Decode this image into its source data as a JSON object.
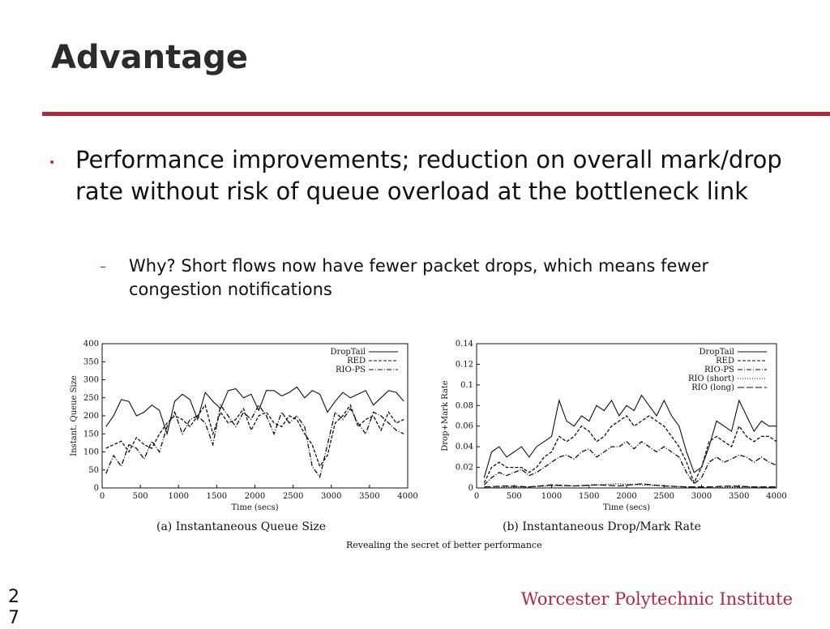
{
  "slide": {
    "title": "Advantage",
    "bullet": "Performance improvements; reduction on overall mark/drop rate without risk of queue overload at the bottleneck link",
    "sub_bullet": "Why?  Short flows now have fewer packet drops, which means fewer congestion notifications",
    "page_number": "27",
    "footer": "Worcester Polytechnic Institute",
    "accent_color": "#b2283a"
  },
  "figure": {
    "caption": "Revealing the secret of better performance"
  },
  "chart_data": [
    {
      "type": "line",
      "subcaption": "(a) Instantaneous Queue Size",
      "xlabel": "Time (secs)",
      "ylabel": "Instant. Queue Size",
      "xlim": [
        0,
        4000
      ],
      "ylim": [
        0,
        400
      ],
      "xticks": [
        0,
        500,
        1000,
        1500,
        2000,
        2500,
        3000,
        3500,
        4000
      ],
      "yticks": [
        0,
        50,
        100,
        150,
        200,
        250,
        300,
        350,
        400
      ],
      "legend_position": "top-right",
      "series": [
        {
          "name": "DropTail",
          "dash": "solid",
          "x": [
            50,
            150,
            250,
            350,
            450,
            550,
            650,
            750,
            850,
            950,
            1050,
            1150,
            1250,
            1350,
            1450,
            1550,
            1650,
            1750,
            1850,
            1950,
            2050,
            2150,
            2250,
            2350,
            2450,
            2550,
            2650,
            2750,
            2850,
            2950,
            3050,
            3150,
            3250,
            3350,
            3450,
            3550,
            3650,
            3750,
            3850,
            3950
          ],
          "y": [
            170,
            200,
            245,
            240,
            200,
            210,
            230,
            215,
            150,
            240,
            260,
            245,
            190,
            265,
            240,
            220,
            270,
            275,
            250,
            260,
            215,
            270,
            270,
            255,
            265,
            280,
            250,
            270,
            260,
            210,
            240,
            265,
            250,
            260,
            270,
            230,
            250,
            270,
            265,
            240
          ]
        },
        {
          "name": "RED",
          "dash": "dashed",
          "x": [
            50,
            150,
            250,
            350,
            450,
            550,
            650,
            750,
            850,
            950,
            1050,
            1150,
            1250,
            1350,
            1450,
            1550,
            1650,
            1750,
            1850,
            1950,
            2050,
            2150,
            2250,
            2350,
            2450,
            2550,
            2650,
            2750,
            2850,
            2950,
            3050,
            3150,
            3250,
            3350,
            3450,
            3550,
            3650,
            3750,
            3850,
            3950
          ],
          "y": [
            110,
            120,
            130,
            100,
            140,
            120,
            110,
            150,
            180,
            200,
            190,
            170,
            200,
            230,
            150,
            210,
            180,
            190,
            220,
            160,
            200,
            210,
            180,
            170,
            200,
            190,
            150,
            120,
            60,
            90,
            180,
            200,
            230,
            170,
            190,
            200,
            160,
            210,
            180,
            190
          ]
        },
        {
          "name": "RIO-PS",
          "dash": "dashdot",
          "x": [
            50,
            150,
            250,
            350,
            450,
            550,
            650,
            750,
            850,
            950,
            1050,
            1150,
            1250,
            1350,
            1450,
            1550,
            1650,
            1750,
            1850,
            1950,
            2050,
            2150,
            2250,
            2350,
            2450,
            2550,
            2650,
            2750,
            2850,
            2950,
            3050,
            3150,
            3250,
            3350,
            3450,
            3550,
            3650,
            3750,
            3850,
            3950
          ],
          "y": [
            40,
            90,
            60,
            120,
            110,
            80,
            130,
            100,
            170,
            210,
            150,
            190,
            200,
            180,
            120,
            230,
            200,
            170,
            210,
            190,
            230,
            200,
            150,
            210,
            180,
            200,
            170,
            60,
            30,
            120,
            210,
            190,
            220,
            180,
            150,
            210,
            200,
            180,
            160,
            150
          ]
        }
      ]
    },
    {
      "type": "line",
      "subcaption": "(b) Instantaneous Drop/Mark Rate",
      "xlabel": "Time (secs)",
      "ylabel": "Drop+Mark Rate",
      "xlim": [
        0,
        4000
      ],
      "ylim": [
        0,
        0.14
      ],
      "xticks": [
        0,
        500,
        1000,
        1500,
        2000,
        2500,
        3000,
        3500,
        4000
      ],
      "yticks": [
        0,
        0.02,
        0.04,
        0.06,
        0.08,
        0.1,
        0.12,
        0.14
      ],
      "legend_position": "top-right",
      "series": [
        {
          "name": "DropTail",
          "dash": "solid",
          "x": [
            100,
            200,
            300,
            400,
            500,
            600,
            700,
            800,
            900,
            1000,
            1100,
            1200,
            1300,
            1400,
            1500,
            1600,
            1700,
            1800,
            1900,
            2000,
            2100,
            2200,
            2300,
            2400,
            2500,
            2600,
            2700,
            2800,
            2900,
            3000,
            3100,
            3200,
            3300,
            3400,
            3500,
            3600,
            3700,
            3800,
            3900,
            4000
          ],
          "y": [
            0.01,
            0.035,
            0.04,
            0.03,
            0.035,
            0.04,
            0.03,
            0.04,
            0.045,
            0.05,
            0.085,
            0.065,
            0.06,
            0.07,
            0.065,
            0.08,
            0.075,
            0.085,
            0.07,
            0.08,
            0.075,
            0.09,
            0.08,
            0.07,
            0.085,
            0.07,
            0.06,
            0.035,
            0.015,
            0.02,
            0.04,
            0.065,
            0.06,
            0.055,
            0.085,
            0.07,
            0.055,
            0.065,
            0.06,
            0.06
          ]
        },
        {
          "name": "RED",
          "dash": "dashed",
          "x": [
            100,
            200,
            300,
            400,
            500,
            600,
            700,
            800,
            900,
            1000,
            1100,
            1200,
            1300,
            1400,
            1500,
            1600,
            1700,
            1800,
            1900,
            2000,
            2100,
            2200,
            2300,
            2400,
            2500,
            2600,
            2700,
            2800,
            2900,
            3000,
            3100,
            3200,
            3300,
            3400,
            3500,
            3600,
            3700,
            3800,
            3900,
            4000
          ],
          "y": [
            0.005,
            0.02,
            0.025,
            0.02,
            0.02,
            0.02,
            0.015,
            0.02,
            0.03,
            0.035,
            0.05,
            0.045,
            0.05,
            0.06,
            0.055,
            0.045,
            0.05,
            0.06,
            0.065,
            0.07,
            0.06,
            0.065,
            0.07,
            0.065,
            0.06,
            0.05,
            0.04,
            0.025,
            0.005,
            0.02,
            0.045,
            0.05,
            0.045,
            0.04,
            0.06,
            0.05,
            0.045,
            0.05,
            0.05,
            0.045
          ]
        },
        {
          "name": "RIO-PS",
          "dash": "dashdot",
          "x": [
            100,
            200,
            300,
            400,
            500,
            600,
            700,
            800,
            900,
            1000,
            1100,
            1200,
            1300,
            1400,
            1500,
            1600,
            1700,
            1800,
            1900,
            2000,
            2100,
            2200,
            2300,
            2400,
            2500,
            2600,
            2700,
            2800,
            2900,
            3000,
            3100,
            3200,
            3300,
            3400,
            3500,
            3600,
            3700,
            3800,
            3900,
            4000
          ],
          "y": [
            0.003,
            0.01,
            0.015,
            0.012,
            0.015,
            0.018,
            0.012,
            0.015,
            0.02,
            0.025,
            0.03,
            0.032,
            0.028,
            0.035,
            0.038,
            0.03,
            0.035,
            0.04,
            0.04,
            0.045,
            0.038,
            0.045,
            0.04,
            0.035,
            0.04,
            0.035,
            0.03,
            0.015,
            0.004,
            0.01,
            0.025,
            0.03,
            0.025,
            0.028,
            0.032,
            0.03,
            0.025,
            0.03,
            0.025,
            0.022
          ]
        },
        {
          "name": "RIO (short)",
          "dash": "dotted",
          "x": [
            100,
            400,
            700,
            1000,
            1300,
            1600,
            1900,
            2200,
            2500,
            2800,
            3100,
            3400,
            3700,
            4000
          ],
          "y": [
            0.0,
            0.001,
            0.001,
            0.002,
            0.002,
            0.003,
            0.004,
            0.003,
            0.002,
            0.001,
            0.0,
            0.001,
            0.001,
            0.0
          ]
        },
        {
          "name": "RIO (long)",
          "dash": "longdash",
          "x": [
            100,
            400,
            700,
            1000,
            1300,
            1600,
            1900,
            2200,
            2500,
            2800,
            3100,
            3400,
            3700,
            4000
          ],
          "y": [
            0.001,
            0.002,
            0.001,
            0.003,
            0.002,
            0.003,
            0.002,
            0.004,
            0.002,
            0.001,
            0.001,
            0.002,
            0.001,
            0.001
          ]
        }
      ]
    }
  ]
}
